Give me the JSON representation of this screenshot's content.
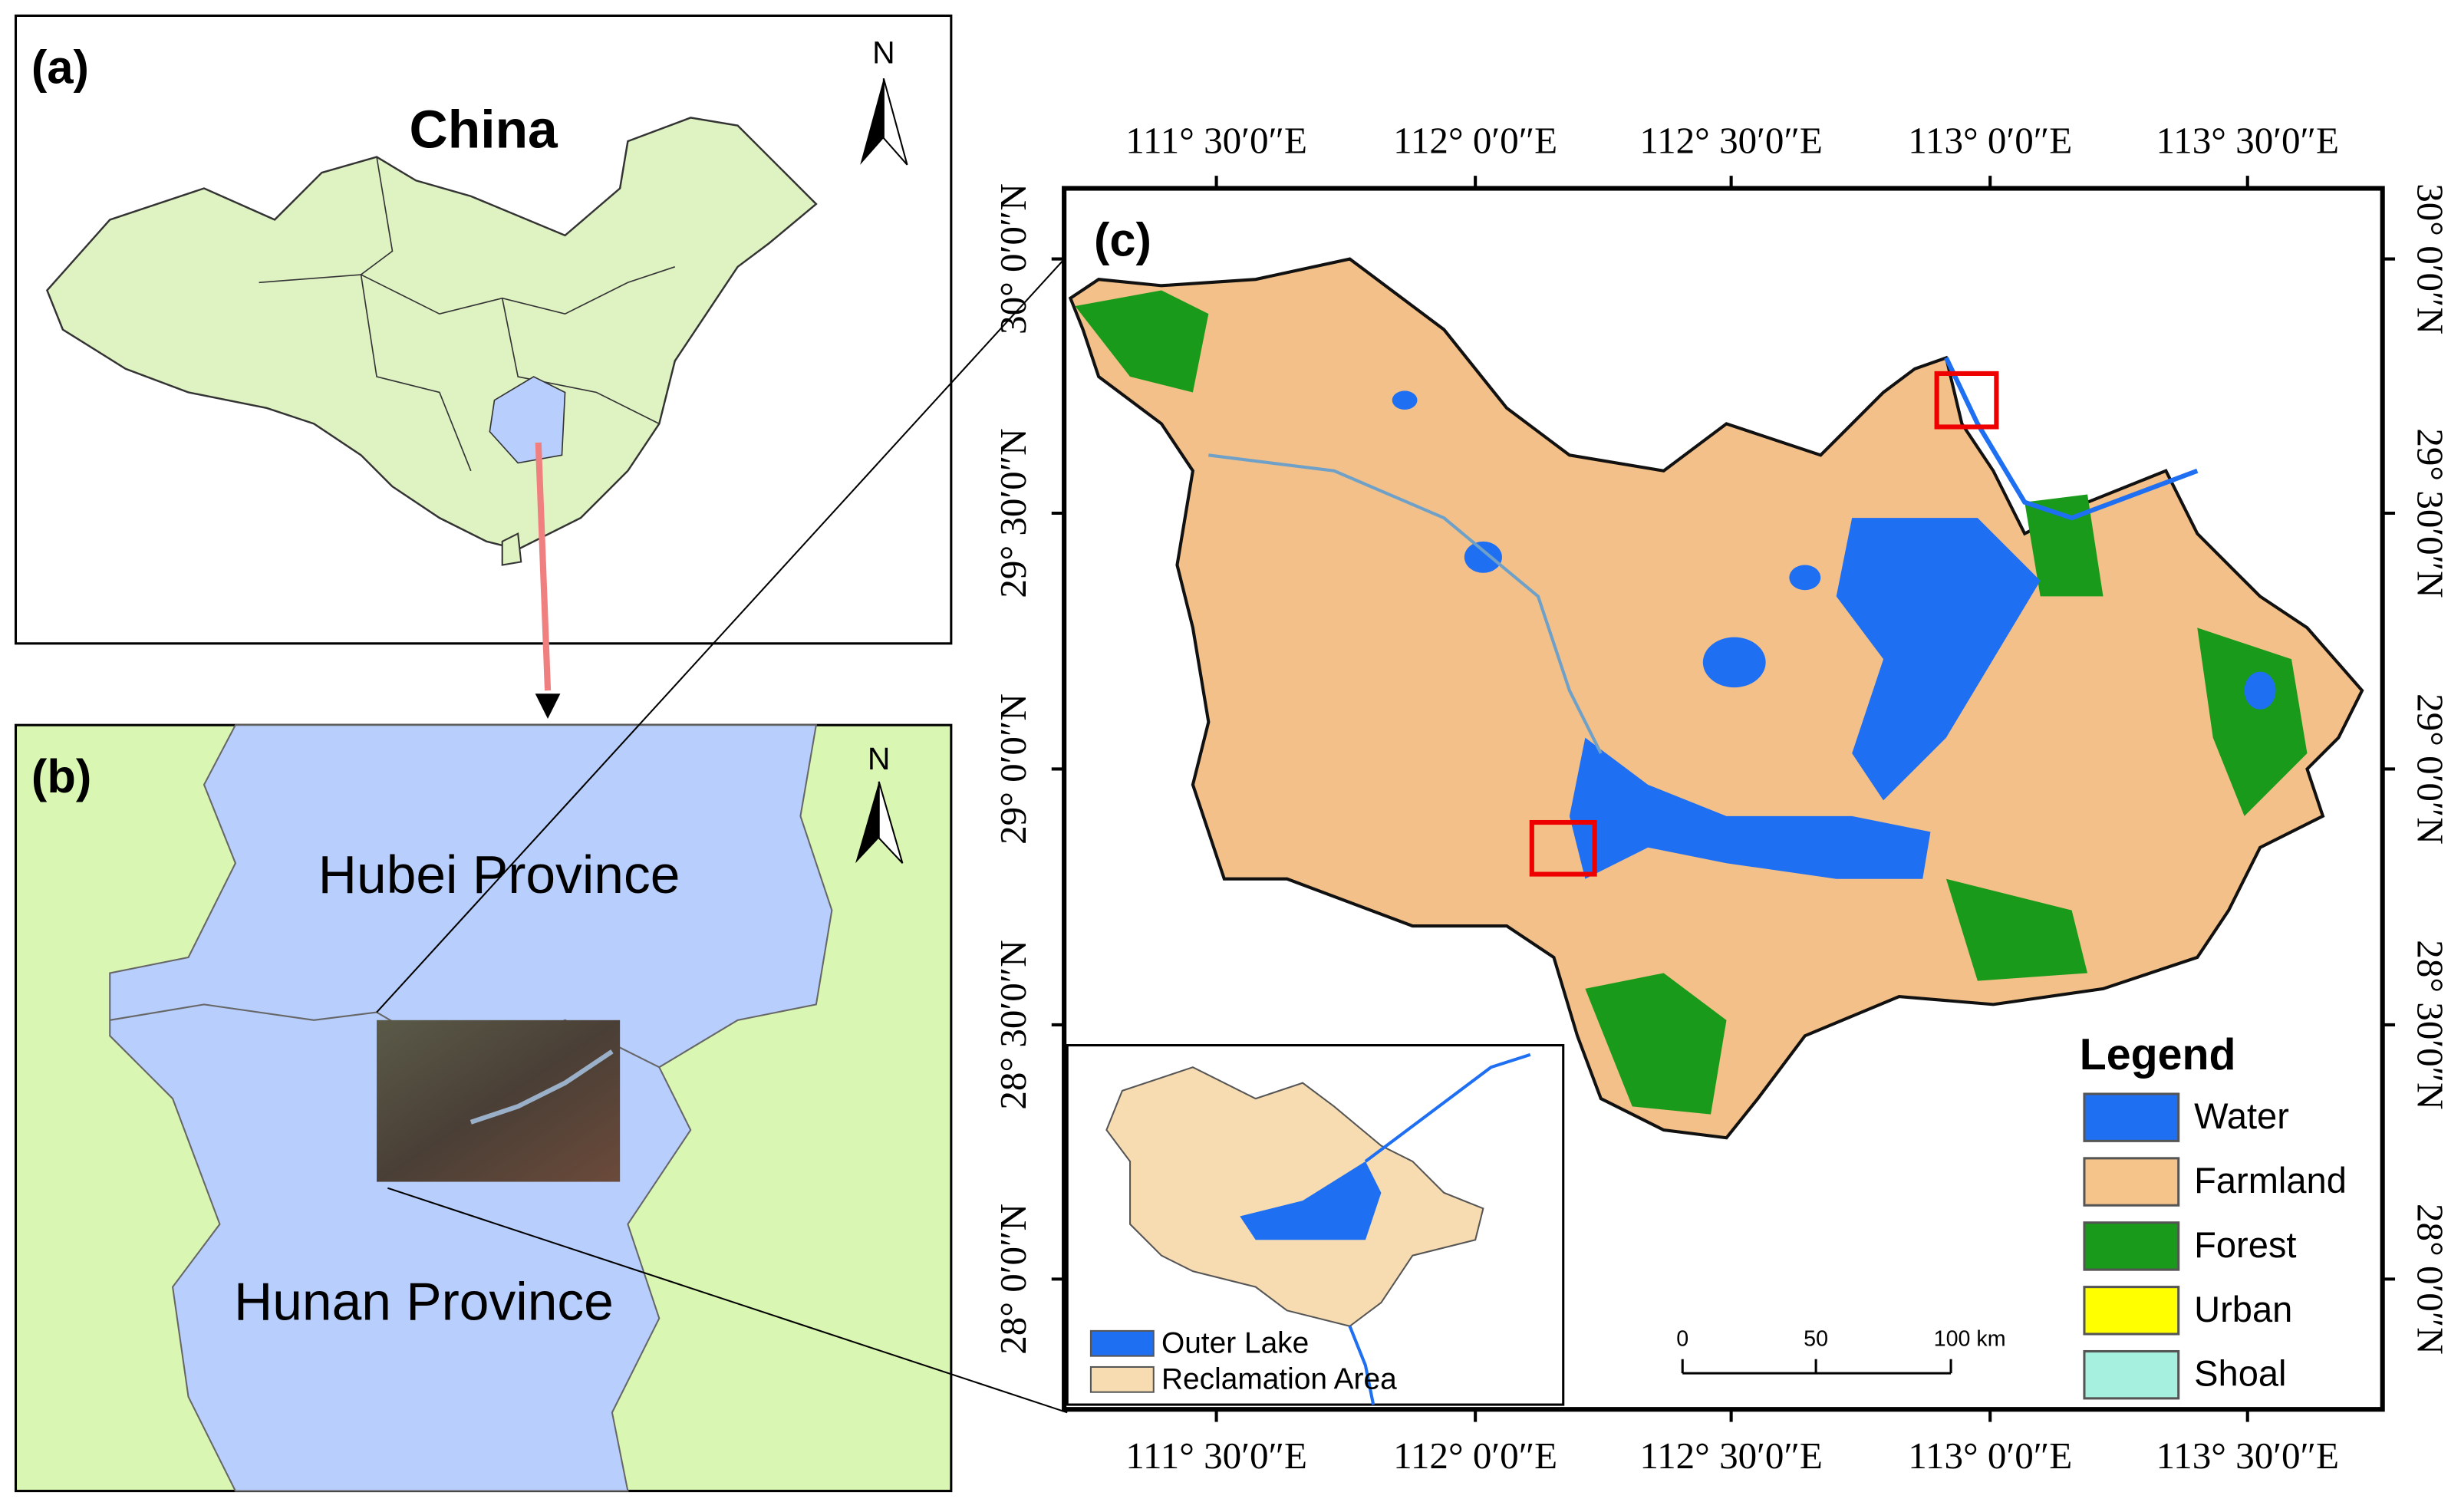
{
  "panel_a": {
    "label": "(a)",
    "title": "China",
    "north": "N"
  },
  "panel_b": {
    "label": "(b)",
    "north": "N",
    "regions": [
      "Hubei Province",
      "Hunan Province"
    ]
  },
  "panel_c": {
    "label": "(c)",
    "x_labels": [
      "111° 30′0″E",
      "112° 0′0″E",
      "112° 30′0″E",
      "113° 0′0″E",
      "113° 30′0″E"
    ],
    "y_labels": [
      "30° 0′0″N",
      "29° 30′0″N",
      "29° 0′0″N",
      "28° 30′0″N",
      "28° 0′0″N"
    ],
    "legend": {
      "title": "Legend",
      "items": [
        {
          "name": "Water",
          "color": "#1f6ff2"
        },
        {
          "name": "Farmland",
          "color": "#f5c48a"
        },
        {
          "name": "Forest",
          "color": "#1a9a1a"
        },
        {
          "name": "Urban",
          "color": "#ffff00"
        },
        {
          "name": "Shoal",
          "color": "#a6f0e0"
        }
      ]
    },
    "inset_legend": [
      {
        "name": "Outer Lake",
        "color": "#1f6ff2"
      },
      {
        "name": "Reclamation Area",
        "color": "#f7dcb2"
      }
    ],
    "scale_bar": [
      "0",
      "50",
      "100 km"
    ]
  }
}
